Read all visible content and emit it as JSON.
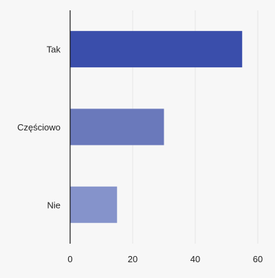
{
  "chart_data": {
    "type": "bar",
    "orientation": "horizontal",
    "categories": [
      "Tak",
      "Częściowo",
      "Nie"
    ],
    "values": [
      55,
      30,
      15
    ],
    "xlim": [
      0,
      65
    ],
    "xticks": [
      0,
      20,
      40,
      60
    ],
    "title": "",
    "xlabel": "",
    "ylabel": "",
    "grid": "vertical",
    "legend": "none",
    "colors": [
      "#3a4eab",
      "#6a79bb",
      "#8593cb"
    ],
    "gridColor": "#e4e4e4",
    "axisColor": "#111111",
    "background": "#f7f7f7"
  }
}
